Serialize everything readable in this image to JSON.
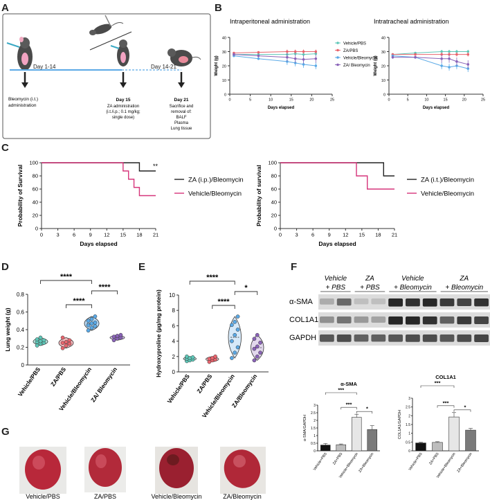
{
  "panel_labels": [
    "A",
    "B",
    "C",
    "D",
    "E",
    "F",
    "G"
  ],
  "panelA": {
    "timeline_labels": {
      "day1_14": "Day 1-14",
      "day15": "Day 15",
      "day14_21": "Day 14-21",
      "day21": "Day 21"
    },
    "notes": {
      "bleo": [
        "Bleomycin (i.t.)",
        "administration"
      ],
      "za": [
        "ZA administration",
        "(i.t./i.p.; 0.1 mg/kg;",
        "single dose)"
      ],
      "sac": [
        "Sacrifice and",
        "removal of:",
        "BALF",
        "Plasma",
        "Lung tissue"
      ]
    }
  },
  "colors": {
    "vehicle_pbs": "#5ec7b8",
    "za_pbs": "#e8646d",
    "vehicle_bleo": "#5aa9e6",
    "za_bleo": "#8a63b8",
    "km_za": "#222222",
    "km_vehicle": "#d6347a"
  },
  "chart_data": [
    {
      "id": "B1",
      "type": "line",
      "title": "Intraperitoneal administration",
      "xlabel": "Days elapsed",
      "ylabel": "Weight (g)",
      "xlim": [
        0,
        25
      ],
      "ylim": [
        0,
        40
      ],
      "xticks": [
        0,
        5,
        10,
        15,
        20,
        25
      ],
      "yticks": [
        0,
        10,
        20,
        30,
        40
      ],
      "x": [
        1,
        7,
        14,
        16,
        18,
        21
      ],
      "series": [
        {
          "name": "Vehicle/PBS",
          "values": [
            28,
            28,
            28,
            28.5,
            28,
            28.5
          ]
        },
        {
          "name": "ZA/PBS",
          "values": [
            29,
            29.5,
            30,
            30,
            30,
            30
          ]
        },
        {
          "name": "Vehicle/Bleomycin",
          "values": [
            27,
            25,
            23,
            22,
            21,
            20
          ]
        },
        {
          "name": "ZA/ Bleomycin",
          "values": [
            28,
            27,
            26,
            25,
            24.5,
            25
          ]
        }
      ]
    },
    {
      "id": "B2",
      "type": "line",
      "title": "Intratracheal administration",
      "xlabel": "Days elapsed",
      "ylabel": "Weight (g)",
      "xlim": [
        0,
        25
      ],
      "ylim": [
        0,
        40
      ],
      "xticks": [
        0,
        5,
        10,
        15,
        20,
        25
      ],
      "yticks": [
        0,
        10,
        20,
        30,
        40
      ],
      "x": [
        1,
        7,
        14,
        16,
        18,
        21
      ],
      "series": [
        {
          "name": "Vehicle/PBS",
          "values": [
            28,
            29,
            30,
            30,
            30,
            30
          ]
        },
        {
          "name": "ZA/PBS",
          "values": [
            28,
            28,
            28,
            28,
            28,
            28
          ]
        },
        {
          "name": "Vehicle/Bleomycin",
          "values": [
            27,
            26,
            20,
            19,
            20,
            18
          ]
        },
        {
          "name": "ZA/ Bleomycin",
          "values": [
            26,
            26,
            25,
            25,
            23,
            21
          ]
        }
      ]
    },
    {
      "id": "C1",
      "type": "line",
      "title": "",
      "xlabel": "Days elapsed",
      "ylabel": "Probability of Survival",
      "xlim": [
        0,
        21
      ],
      "ylim": [
        0,
        100
      ],
      "xticks": [
        0,
        3,
        6,
        9,
        12,
        15,
        18,
        21
      ],
      "yticks": [
        0,
        20,
        40,
        60,
        80,
        100
      ],
      "annotation": "**",
      "series": [
        {
          "name": "ZA (i.p.)/Bleomycin",
          "steps": [
            [
              0,
              100
            ],
            [
              18,
              100
            ],
            [
              18,
              87.5
            ],
            [
              21,
              87.5
            ]
          ]
        },
        {
          "name": "Vehicle/Bleomycin",
          "steps": [
            [
              0,
              100
            ],
            [
              15,
              100
            ],
            [
              15,
              87.5
            ],
            [
              16,
              87.5
            ],
            [
              16,
              75
            ],
            [
              17,
              75
            ],
            [
              17,
              62.5
            ],
            [
              18,
              62.5
            ],
            [
              18,
              50
            ],
            [
              21,
              50
            ]
          ]
        }
      ]
    },
    {
      "id": "C2",
      "type": "line",
      "title": "",
      "xlabel": "Days elapsed",
      "ylabel": "Probability of survival",
      "xlim": [
        0,
        21
      ],
      "ylim": [
        0,
        100
      ],
      "xticks": [
        0,
        3,
        6,
        9,
        12,
        15,
        18,
        21
      ],
      "yticks": [
        0,
        20,
        40,
        60,
        80,
        100
      ],
      "series": [
        {
          "name": "ZA (i.t.)/Bleomycin",
          "steps": [
            [
              0,
              100
            ],
            [
              19,
              100
            ],
            [
              19,
              80
            ],
            [
              21,
              80
            ]
          ]
        },
        {
          "name": "Vehicle/Bleomycin",
          "steps": [
            [
              0,
              100
            ],
            [
              14,
              100
            ],
            [
              14,
              80
            ],
            [
              16,
              80
            ],
            [
              16,
              60
            ],
            [
              21,
              60
            ]
          ]
        }
      ]
    },
    {
      "id": "D",
      "type": "violin",
      "ylabel": "Lung weight (g)",
      "ylim": [
        0,
        0.8
      ],
      "yticks": [
        0,
        0.2,
        0.4,
        0.6,
        0.8
      ],
      "categories": [
        "Vehicle/PBS",
        "ZA/PBS",
        "Vehicle/Bleomycin",
        "ZA/ Bleomycin"
      ],
      "points": [
        [
          0.22,
          0.24,
          0.25,
          0.26,
          0.27,
          0.28,
          0.29,
          0.31
        ],
        [
          0.19,
          0.22,
          0.24,
          0.25,
          0.26,
          0.28,
          0.31
        ],
        [
          0.39,
          0.42,
          0.44,
          0.45,
          0.47,
          0.48,
          0.5,
          0.52,
          0.55
        ],
        [
          0.28,
          0.3,
          0.31,
          0.32,
          0.33,
          0.34
        ]
      ],
      "significance": [
        {
          "pair": [
            0,
            2
          ],
          "label": "****"
        },
        {
          "pair": [
            1,
            2
          ],
          "label": "****"
        },
        {
          "pair": [
            2,
            3
          ],
          "label": "****"
        }
      ]
    },
    {
      "id": "E",
      "type": "violin",
      "ylabel": "Hydroxyproline (µg/mg protein)",
      "ylim": [
        0,
        10
      ],
      "yticks": [
        0,
        2,
        4,
        6,
        8,
        10
      ],
      "categories": [
        "Vehicle/PBS",
        "ZA/PBS",
        "Vehicle/Bleomycin",
        "ZA/Bleomycin"
      ],
      "points": [
        [
          1.4,
          1.5,
          1.6,
          1.7,
          1.8,
          1.9,
          2.0
        ],
        [
          1.3,
          1.5,
          1.6,
          1.7,
          1.8,
          2.0
        ],
        [
          1.8,
          2.5,
          3.2,
          4,
          4.8,
          5.5,
          6.1,
          6.5,
          7.2
        ],
        [
          1.5,
          2.0,
          2.5,
          3.0,
          3.3,
          3.8,
          4.3,
          4.8
        ]
      ],
      "significance": [
        {
          "pair": [
            0,
            2
          ],
          "label": "****"
        },
        {
          "pair": [
            1,
            2
          ],
          "label": "****"
        },
        {
          "pair": [
            2,
            3
          ],
          "label": "*"
        }
      ]
    },
    {
      "id": "F1",
      "type": "bar",
      "title": "α-SMA",
      "ylabel": "α-SMA/GAPDH",
      "ylim": [
        0,
        3
      ],
      "yticks": [
        0,
        0.5,
        1,
        1.5,
        2,
        2.5,
        3
      ],
      "categories": [
        "Vehicle+PBS",
        "ZA+PBS",
        "Vehicle+Bleomycin",
        "ZA+Bleomycin"
      ],
      "values": [
        0.38,
        0.4,
        2.2,
        1.4
      ],
      "errors": [
        0.1,
        0.05,
        0.2,
        0.25
      ],
      "significance": [
        {
          "pair": [
            0,
            2
          ],
          "label": "***"
        },
        {
          "pair": [
            1,
            2
          ],
          "label": "***"
        },
        {
          "pair": [
            2,
            3
          ],
          "label": "*"
        }
      ]
    },
    {
      "id": "F2",
      "type": "bar",
      "title": "COL1A1",
      "ylabel": "COL1A1/GAPDH",
      "ylim": [
        0,
        3
      ],
      "yticks": [
        0,
        0.5,
        1,
        1.5,
        2,
        2.5,
        3
      ],
      "categories": [
        "Vehicle+PBS",
        "ZA+PBS",
        "Vehicle+Bleomycin",
        "ZA+Bleomycin"
      ],
      "values": [
        0.45,
        0.48,
        1.93,
        1.18
      ],
      "errors": [
        0.04,
        0.04,
        0.25,
        0.1
      ],
      "significance": [
        {
          "pair": [
            0,
            2
          ],
          "label": "***"
        },
        {
          "pair": [
            1,
            2
          ],
          "label": "***"
        },
        {
          "pair": [
            2,
            3
          ],
          "label": "*"
        }
      ]
    }
  ],
  "blot": {
    "groups": [
      [
        "Vehicle",
        "+ PBS"
      ],
      [
        "ZA",
        "+ PBS"
      ],
      [
        "Vehicle",
        "+ Bleomycin"
      ],
      [
        "ZA",
        "+ Bleomycin"
      ]
    ],
    "rows": [
      "α-SMA",
      "COL1A1",
      "GAPDH"
    ],
    "intensity": [
      [
        0.2,
        0.55,
        0.1,
        0.1,
        0.9,
        0.85,
        0.9,
        0.8,
        0.75,
        0.85
      ],
      [
        0.35,
        0.5,
        0.3,
        0.25,
        0.9,
        0.9,
        0.85,
        0.6,
        0.8,
        0.75
      ],
      [
        0.65,
        0.7,
        0.6,
        0.6,
        0.65,
        0.7,
        0.7,
        0.65,
        0.7,
        0.75
      ]
    ]
  },
  "panelG": {
    "captions": [
      "Vehicle/PBS",
      "ZA/PBS",
      "Vehicle/Bleomycin",
      "ZA/Bleomycin"
    ]
  }
}
